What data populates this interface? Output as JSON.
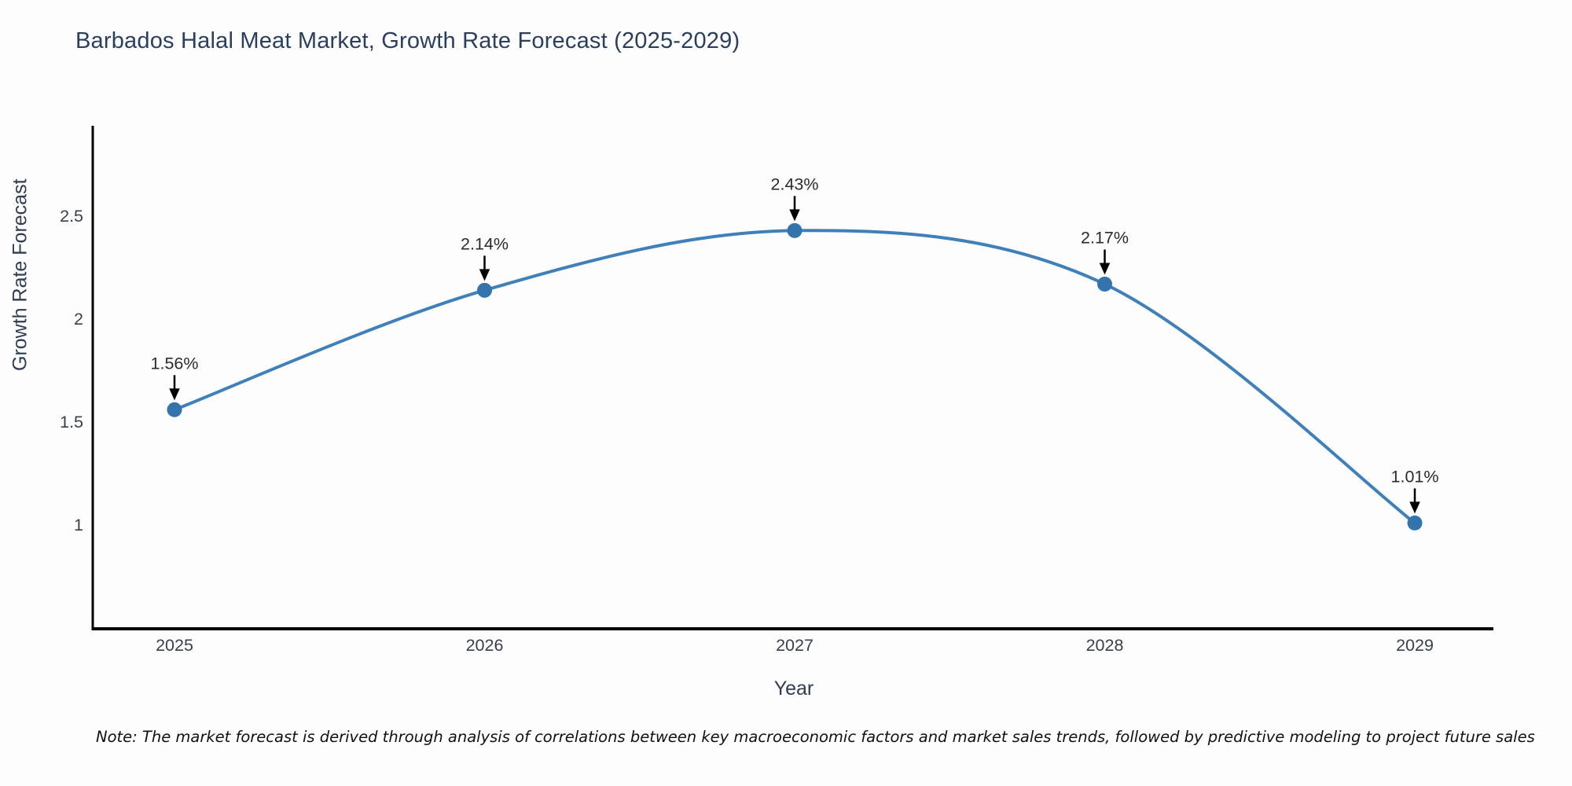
{
  "title": "Barbados Halal Meat Market, Growth Rate Forecast (2025-2029)",
  "note": "Note: The market forecast is derived through analysis of correlations between key macroeconomic factors and market sales trends, followed by predictive modeling to project future sales",
  "chart_data": {
    "type": "line",
    "title": "Barbados Halal Meat Market, Growth Rate Forecast (2025-2029)",
    "xlabel": "Year",
    "ylabel": "Growth Rate Forecast",
    "x": [
      2025,
      2026,
      2027,
      2028,
      2029
    ],
    "values": [
      1.56,
      2.14,
      2.43,
      2.17,
      1.01
    ],
    "point_labels": [
      "1.56%",
      "2.14%",
      "2.43%",
      "2.17%",
      "1.01%"
    ],
    "xtick_labels": [
      "2025",
      "2026",
      "2027",
      "2028",
      "2029"
    ],
    "ytick_values": [
      1,
      1.5,
      2,
      2.5
    ],
    "ytick_labels": [
      "1",
      "1.5",
      "2",
      "2.5"
    ],
    "ylim": [
      0.49,
      2.95
    ],
    "grid": false,
    "legend": "none",
    "line_smooth": true,
    "annotation_style": "black-down-arrow",
    "colors": {
      "line": "#4080ba",
      "marker": "#3474ad",
      "spine": "#000000",
      "annotation_text": "#2b2b2b",
      "annotation_arrow": "#000000",
      "tick_label": "#39404d",
      "title": "#2a3f5f",
      "axis_title": "#2e3d54",
      "background": "#fdfdfe"
    }
  }
}
